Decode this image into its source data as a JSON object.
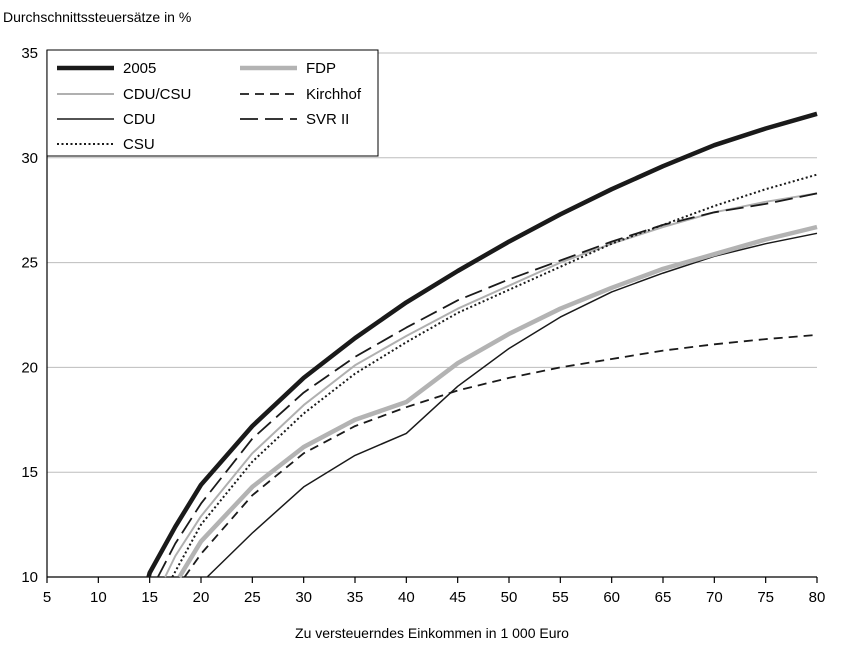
{
  "chart_data": {
    "type": "line",
    "title": "",
    "ylabel": "Durchschnittssteuersätze in %",
    "xlabel": "Zu versteuerndes Einkommen in 1 000 Euro",
    "xlim": [
      5,
      80
    ],
    "ylim": [
      10,
      35
    ],
    "x_ticks": [
      5,
      10,
      15,
      20,
      25,
      30,
      35,
      40,
      45,
      50,
      55,
      60,
      65,
      70,
      75,
      80
    ],
    "y_ticks": [
      10,
      15,
      20,
      25,
      30,
      35
    ],
    "grid": "horizontal",
    "legend_position": "top-left",
    "series": [
      {
        "name": "2005",
        "color": "#1a1a1a",
        "style": "solid-thick",
        "points": [
          [
            14.9,
            10
          ],
          [
            15,
            10.2
          ],
          [
            17.5,
            12.4
          ],
          [
            20,
            14.4
          ],
          [
            25,
            17.2
          ],
          [
            30,
            19.5
          ],
          [
            35,
            21.4
          ],
          [
            40,
            23.1
          ],
          [
            45,
            24.6
          ],
          [
            50,
            26.0
          ],
          [
            55,
            27.3
          ],
          [
            60,
            28.5
          ],
          [
            65,
            29.6
          ],
          [
            70,
            30.6
          ],
          [
            75,
            31.4
          ],
          [
            80,
            32.1
          ]
        ]
      },
      {
        "name": "CDU/CSU",
        "color": "#b0b0b0",
        "style": "solid",
        "points": [
          [
            16.5,
            10
          ],
          [
            17.5,
            11.0
          ],
          [
            20,
            12.9
          ],
          [
            25,
            15.9
          ],
          [
            30,
            18.2
          ],
          [
            35,
            20.1
          ],
          [
            40,
            21.5
          ],
          [
            45,
            22.8
          ],
          [
            50,
            23.9
          ],
          [
            55,
            25.0
          ],
          [
            60,
            25.9
          ],
          [
            65,
            26.7
          ],
          [
            70,
            27.4
          ],
          [
            75,
            27.9
          ],
          [
            80,
            28.3
          ]
        ]
      },
      {
        "name": "CDU",
        "color": "#1a1a1a",
        "style": "solid-thin",
        "points": [
          [
            20.6,
            10
          ],
          [
            25,
            12.1
          ],
          [
            30,
            14.3
          ],
          [
            35,
            15.8
          ],
          [
            40,
            16.85
          ],
          [
            45,
            19.1
          ],
          [
            50,
            20.9
          ],
          [
            55,
            22.4
          ],
          [
            60,
            23.6
          ],
          [
            65,
            24.5
          ],
          [
            70,
            25.3
          ],
          [
            75,
            25.9
          ],
          [
            80,
            26.4
          ]
        ]
      },
      {
        "name": "CSU",
        "color": "#1a1a1a",
        "style": "dotted",
        "points": [
          [
            17.2,
            10
          ],
          [
            20,
            12.5
          ],
          [
            25,
            15.5
          ],
          [
            30,
            17.8
          ],
          [
            35,
            19.7
          ],
          [
            40,
            21.2
          ],
          [
            45,
            22.6
          ],
          [
            50,
            23.7
          ],
          [
            55,
            24.8
          ],
          [
            60,
            25.9
          ],
          [
            65,
            26.8
          ],
          [
            70,
            27.7
          ],
          [
            75,
            28.5
          ],
          [
            80,
            29.2
          ]
        ]
      },
      {
        "name": "FDP",
        "color": "#b3b3b3",
        "style": "solid-thick",
        "points": [
          [
            17.9,
            10
          ],
          [
            20,
            11.7
          ],
          [
            25,
            14.3
          ],
          [
            30,
            16.2
          ],
          [
            35,
            17.5
          ],
          [
            40,
            18.35
          ],
          [
            45,
            20.2
          ],
          [
            50,
            21.6
          ],
          [
            55,
            22.8
          ],
          [
            60,
            23.8
          ],
          [
            65,
            24.7
          ],
          [
            70,
            25.4
          ],
          [
            75,
            26.1
          ],
          [
            80,
            26.7
          ]
        ]
      },
      {
        "name": "Kirchhof",
        "color": "#1a1a1a",
        "style": "dashed-short",
        "points": [
          [
            18.4,
            10
          ],
          [
            20,
            11.1
          ],
          [
            25,
            13.9
          ],
          [
            30,
            15.9
          ],
          [
            35,
            17.2
          ],
          [
            40,
            18.1
          ],
          [
            45,
            18.9
          ],
          [
            50,
            19.5
          ],
          [
            55,
            20.0
          ],
          [
            60,
            20.4
          ],
          [
            65,
            20.8
          ],
          [
            70,
            21.1
          ],
          [
            75,
            21.35
          ],
          [
            80,
            21.55
          ]
        ]
      },
      {
        "name": "SVR II",
        "color": "#1a1a1a",
        "style": "dashed-long",
        "points": [
          [
            15.8,
            10
          ],
          [
            17.5,
            11.6
          ],
          [
            20,
            13.5
          ],
          [
            25,
            16.6
          ],
          [
            30,
            18.8
          ],
          [
            35,
            20.5
          ],
          [
            40,
            21.9
          ],
          [
            45,
            23.2
          ],
          [
            50,
            24.2
          ],
          [
            55,
            25.1
          ],
          [
            60,
            26.0
          ],
          [
            65,
            26.8
          ],
          [
            70,
            27.4
          ],
          [
            75,
            27.8
          ],
          [
            80,
            28.3
          ]
        ]
      }
    ]
  }
}
